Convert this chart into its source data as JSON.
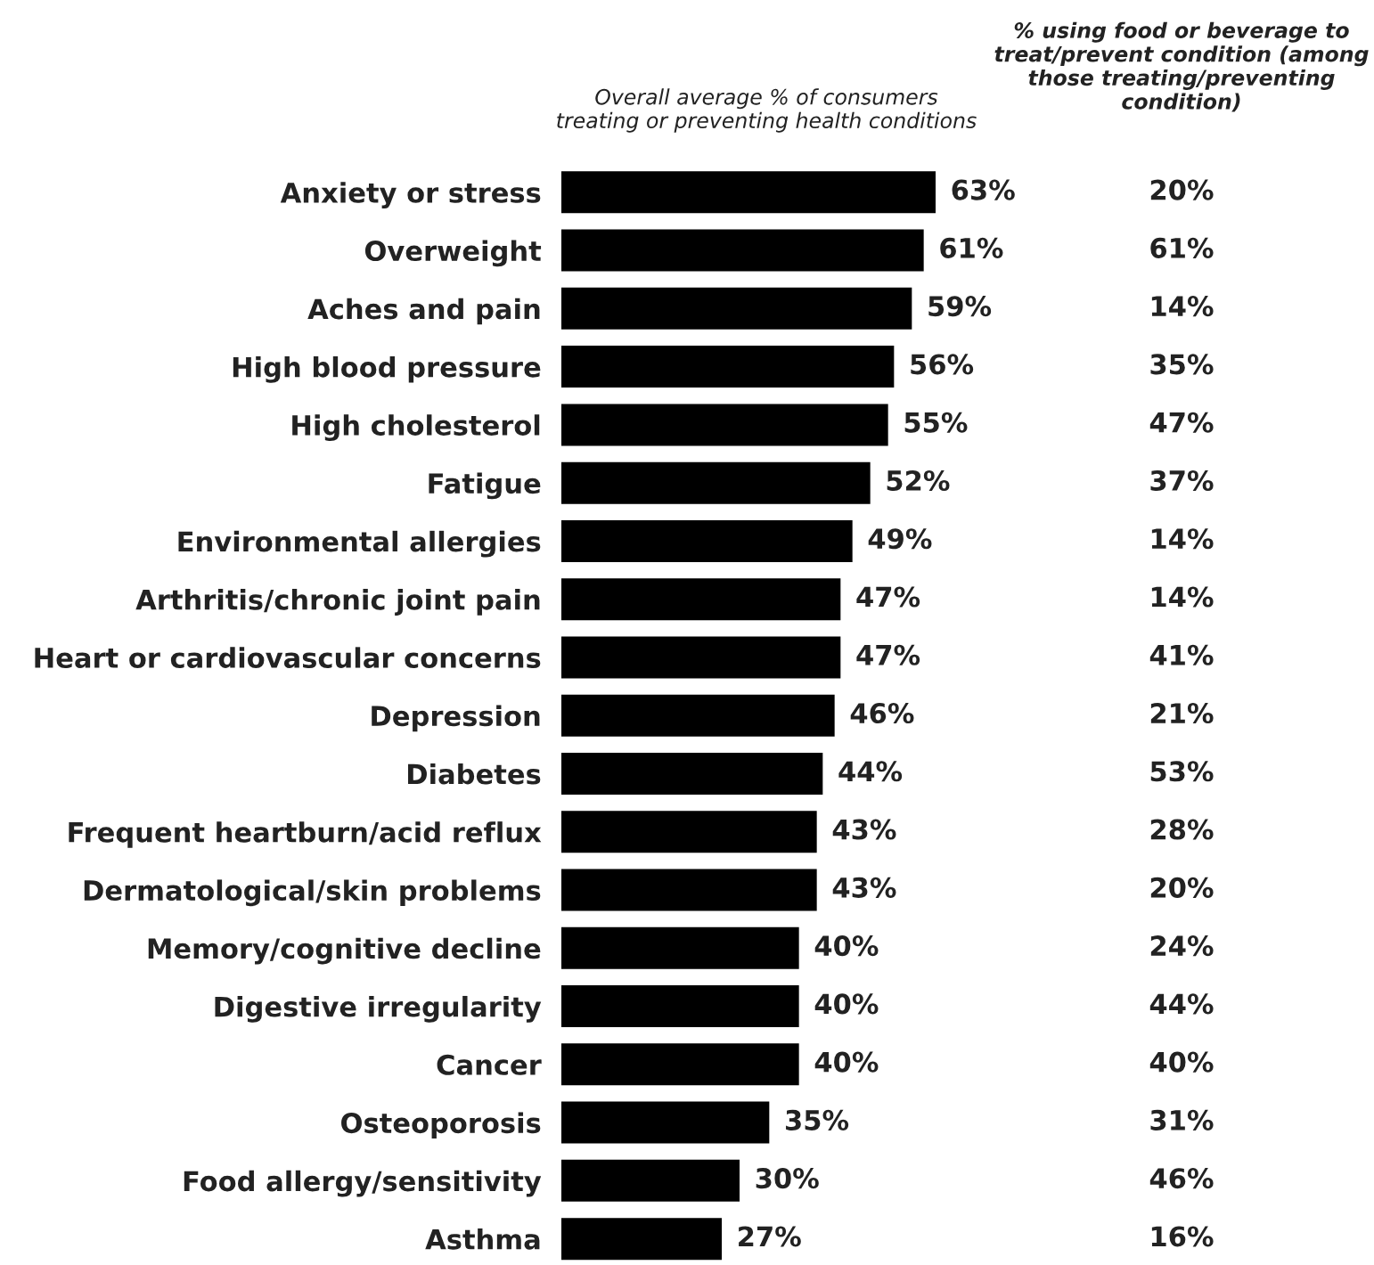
{
  "chart_data": {
    "type": "bar",
    "orientation": "horizontal",
    "title": "Overall average % of consumers\ntreating or preventing health conditions",
    "categories": [
      "Anxiety or stress",
      "Overweight",
      "Aches and pain",
      "High blood pressure",
      "High cholesterol",
      "Fatigue",
      "Environmental allergies",
      "Arthritis/chronic joint pain",
      "Heart or cardiovascular concerns",
      "Depression",
      "Diabetes",
      "Frequent heartburn/acid reflux",
      "Dermatological/skin problems",
      "Memory/cognitive decline",
      "Digestive irregularity",
      "Cancer",
      "Osteoporosis",
      "Food allergy/sensitivity",
      "Asthma"
    ],
    "series": [
      {
        "color": "#000000",
        "values": [
          63,
          61,
          59,
          56,
          55,
          52,
          49,
          47,
          47,
          46,
          44,
          43,
          43,
          40,
          40,
          40,
          35,
          30,
          27
        ],
        "value_labels": [
          "63%",
          "61%",
          "59%",
          "56%",
          "55%",
          "52%",
          "49%",
          "47%",
          "47%",
          "46%",
          "44%",
          "43%",
          "43%",
          "40%",
          "40%",
          "40%",
          "35%",
          "30%",
          "27%"
        ]
      }
    ],
    "annotations": [
      "% using food or beverage to\ntreat/prevent condition (among\nthose treating/preventing\ncondition)",
      "20%",
      "61%",
      "14%",
      "35%",
      "47%",
      "37%",
      "14%",
      "14%",
      "41%",
      "21%",
      "53%",
      "28%",
      "20%",
      "24%",
      "44%",
      "40%",
      "31%",
      "46%",
      "16%"
    ]
  }
}
